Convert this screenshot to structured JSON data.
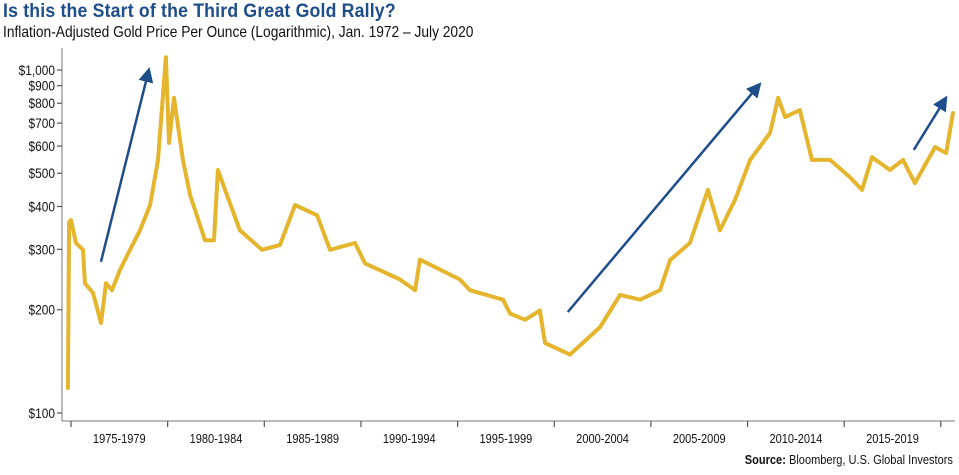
{
  "chart_data": {
    "type": "line",
    "title": "Is this the Start of the Third Great Gold Rally?",
    "subtitle": "Inflation-Adjusted Gold Price Per Ounce (Logarithmic), Jan. 1972 – July 2020",
    "source_label": "Source:",
    "source": "Bloomberg, U.S. Global Investors",
    "xlabel": "",
    "ylabel": "",
    "yscale": "log",
    "ylim": [
      100,
      1100
    ],
    "xlim": [
      1974.8,
      2020.7
    ],
    "y_ticks": [
      {
        "value": 1000,
        "label": "$1,000"
      },
      {
        "value": 900,
        "label": "$900"
      },
      {
        "value": 800,
        "label": "$800"
      },
      {
        "value": 700,
        "label": "$700"
      },
      {
        "value": 600,
        "label": "$600"
      },
      {
        "value": 500,
        "label": "$500"
      },
      {
        "value": 400,
        "label": "$400"
      },
      {
        "value": 300,
        "label": "$300"
      },
      {
        "value": 200,
        "label": "$200"
      },
      {
        "value": 100,
        "label": "$100"
      }
    ],
    "x_categories": [
      "1975-1979",
      "1980-1984",
      "1985-1989",
      "1990-1994",
      "1995-1999",
      "2000-2004",
      "2005-2009",
      "2010-2014",
      "2015-2019"
    ],
    "grid": false,
    "line_color": "#e6b52e",
    "arrow_color": "#1e4d8c",
    "series": [
      {
        "x": [
          1974.84,
          1974.9,
          1975.0,
          1975.26,
          1975.62,
          1975.72,
          1976.14,
          1976.55,
          1976.81,
          1977.12,
          1977.53,
          1978.05,
          1978.57,
          1979.09,
          1979.5,
          1979.91,
          1980.07,
          1980.33,
          1980.79,
          1981.16,
          1981.93,
          1982.4,
          1982.6,
          1982.97,
          1983.74,
          1984.88,
          1985.81,
          1986.59,
          1987.73,
          1988.4,
          1989.69,
          1990.21,
          1992.02,
          1992.8,
          1993.05,
          1995.12,
          1995.64,
          1997.35,
          1997.71,
          1998.49,
          1999.26,
          1999.52,
          2000.81,
          2002.37,
          2003.4,
          2004.44,
          2005.47,
          2005.99,
          2007.02,
          2007.95,
          2008.57,
          2009.35,
          2010.13,
          2011.16,
          2011.58,
          2011.94,
          2012.71,
          2013.33,
          2014.27,
          2015.3,
          2015.92,
          2016.44,
          2017.37,
          2018.04,
          2018.66,
          2019.7,
          2020.27,
          2020.63
        ],
        "y": [
          118,
          360,
          365,
          313,
          299,
          239,
          224,
          183,
          239,
          228,
          261,
          299,
          341,
          404,
          547,
          1090,
          613,
          829,
          547,
          432,
          319,
          319,
          511,
          447,
          341,
          299,
          309,
          404,
          377,
          299,
          313,
          273,
          245,
          228,
          280,
          245,
          228,
          214,
          195,
          187,
          199,
          160,
          148,
          178,
          221,
          214,
          228,
          279,
          313,
          447,
          341,
          418,
          547,
          655,
          829,
          729,
          764,
          547,
          547,
          487,
          447,
          557,
          511,
          547,
          468,
          596,
          573,
          750
        ]
      }
    ],
    "annotations": [
      {
        "type": "arrow",
        "from": [
          1976.55,
          276
        ],
        "to": [
          1979.0,
          987
        ]
      },
      {
        "type": "arrow",
        "from": [
          2000.7,
          197
        ],
        "to": [
          2010.55,
          898
        ]
      },
      {
        "type": "arrow",
        "from": [
          2018.6,
          585
        ],
        "to": [
          2020.2,
          818
        ]
      }
    ]
  }
}
